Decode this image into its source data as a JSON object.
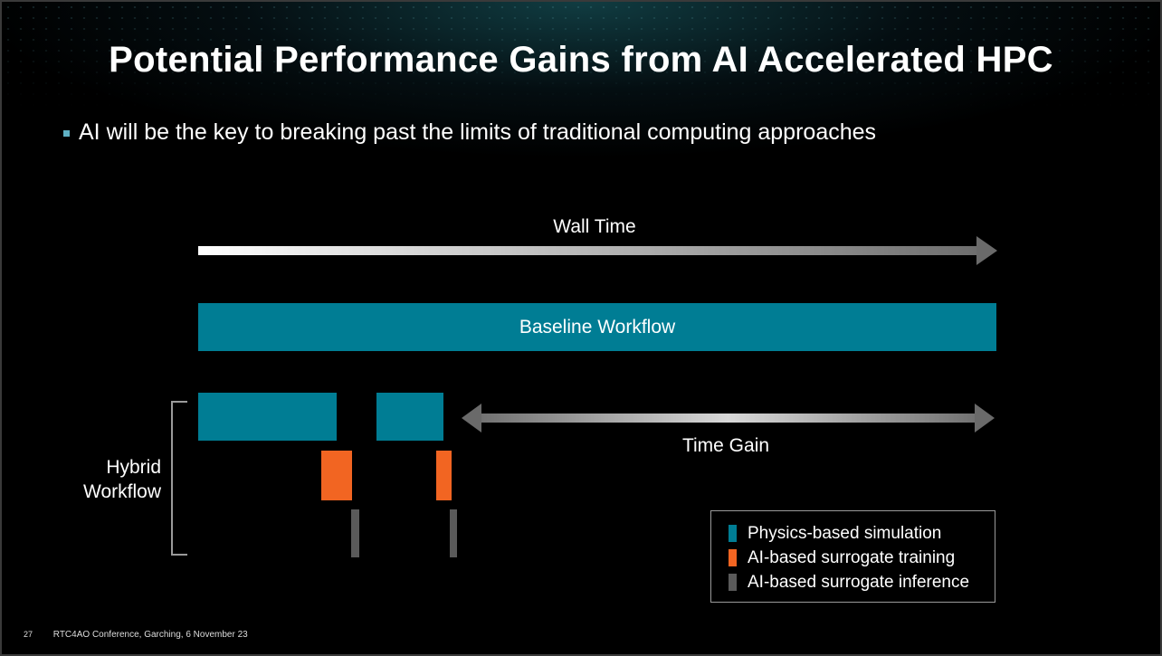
{
  "slide": {
    "title": "Potential Performance Gains from AI Accelerated HPC",
    "bullet": "AI will be the key to breaking past the limits of traditional computing approaches",
    "page_number": "27",
    "footer": "RTC4AO Conference, Garching, 6 November 23"
  },
  "diagram": {
    "wall_time_label": "Wall Time",
    "baseline_label": "Baseline Workflow",
    "time_gain_label": "Time Gain",
    "hybrid_label_line1": "Hybrid",
    "hybrid_label_line2": "Workflow"
  },
  "legend": {
    "items": [
      {
        "label": "Physics-based simulation",
        "color": "#007d94"
      },
      {
        "label": "AI-based surrogate training",
        "color": "#f26522"
      },
      {
        "label": "AI-based surrogate inference",
        "color": "#5a5a5a"
      }
    ]
  },
  "colors": {
    "simulation": "#007d94",
    "training": "#f26522",
    "inference": "#5a5a5a",
    "bullet": "#5fb0c4"
  }
}
